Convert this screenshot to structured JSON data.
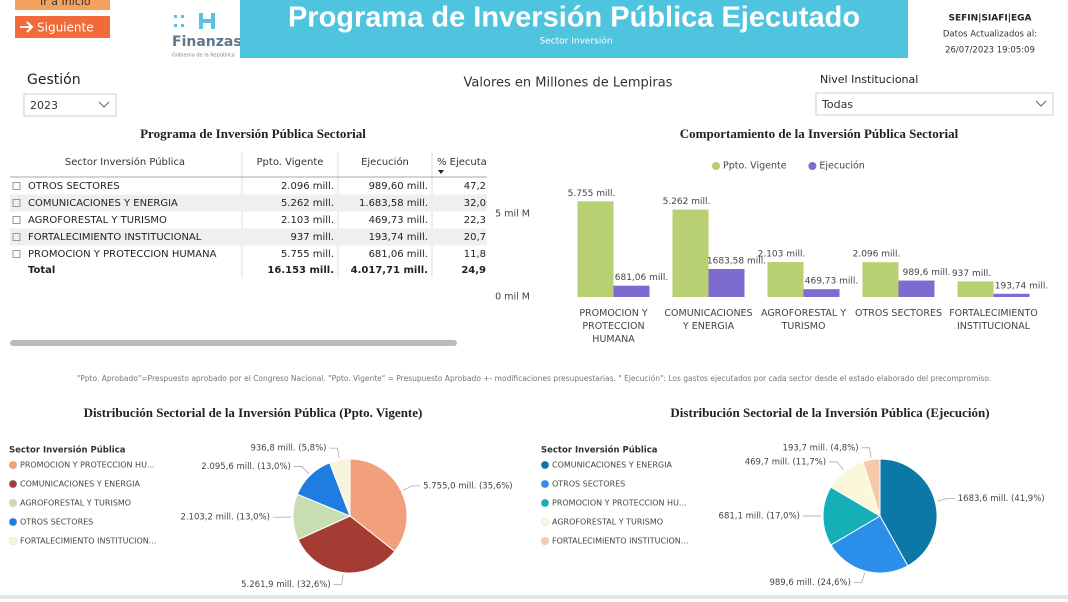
{
  "header": {
    "buttons": [
      "Ir a Inicio",
      "Siguiente"
    ],
    "logo_text": "Finanzas",
    "logo_subtext": "Gobierno de la República",
    "title": "Programa de Inversión Pública Ejecutado",
    "subtitle": "Sector Inversión",
    "source": "SEFIN|SIAFI|EGA",
    "updated_label": "Datos Actualizados al:",
    "updated_at": "26/07/2023 19:05:09"
  },
  "filters": {
    "year_label": "Gestión",
    "year_value": "2023",
    "units_note": "Valores en Millones de Lempiras",
    "level_label": "Nivel Institucional",
    "level_value": "Todas"
  },
  "table": {
    "title": "Programa de Inversión Pública Sectorial",
    "columns": [
      "Sector Inversión Pública",
      "Ppto. Vigente",
      "Ejecución",
      "% Ejecuta"
    ],
    "rows": [
      [
        "OTROS SECTORES",
        "2.096 mill.",
        "989,60 mill.",
        "47,2"
      ],
      [
        "COMUNICACIONES Y ENERGIA",
        "5.262 mill.",
        "1.683,58 mill.",
        "32,0"
      ],
      [
        "AGROFORESTAL Y TURISMO",
        "2.103 mill.",
        "469,73 mill.",
        "22,3"
      ],
      [
        "FORTALECIMIENTO INSTITUCIONAL",
        "937 mill.",
        "193,74 mill.",
        "20,7"
      ],
      [
        "PROMOCION Y PROTECCION HUMANA",
        "5.755 mill.",
        "681,06 mill.",
        "11,8"
      ]
    ],
    "total": [
      "Total",
      "16.153 mill.",
      "4.017,71 mill.",
      "24,9"
    ]
  },
  "footnote": "\"Ppto. Aprobado\"=Prespuesto aprobado por el Congreso Nacional. \"Ppto. Vigente\" = Presupuesto Aprobado +- modificaciones presupuestarias. \" Ejecución\": Los gastos ejecutados por cada sector desde el estado elaborado del precompromiso.",
  "chart_data": [
    {
      "type": "bar",
      "title": "Comportamiento de la Inversión Pública Sectorial",
      "categories": [
        "PROMOCION Y PROTECCION HUMANA",
        "COMUNICACIONES Y ENERGIA",
        "AGROFORESTAL Y TURISMO",
        "OTROS SECTORES",
        "FORTALECIMIENTO INSTITUCIONAL"
      ],
      "series": [
        {
          "name": "Ppto. Vigente",
          "color": "#b8cf72",
          "values": [
            5755,
            5262,
            2103,
            2096,
            937
          ],
          "value_labels": [
            "5.755 mill.",
            "5.262 mill.",
            "2.103 mill.",
            "2.096 mill.",
            "937 mill."
          ]
        },
        {
          "name": "Ejecución",
          "color": "#7c6bd0",
          "values": [
            681.06,
            1683.58,
            469.73,
            989.6,
            193.74
          ],
          "value_labels": [
            "681,06 mill.",
            "1683,58 mill.",
            "469,73 mill.",
            "989,6 mill.",
            "193,74 mill."
          ]
        }
      ],
      "ylim": [
        0,
        6800
      ],
      "yticks": [
        {
          "value": 0,
          "label": "0 mil M"
        },
        {
          "value": 5000,
          "label": "5 mil M"
        }
      ],
      "grid": false
    },
    {
      "type": "pie",
      "title": "Distribución Sectorial de la Inversión Pública (Ppto. Vigente)",
      "legend_title": "Sector Inversión Pública",
      "categories": [
        "PROMOCION Y PROTECCION HU...",
        "COMUNICACIONES Y ENERGIA",
        "AGROFORESTAL Y TURISMO",
        "OTROS SECTORES",
        "FORTALECIMIENTO INSTITUCION..."
      ],
      "values": [
        5755.0,
        5261.9,
        2103.2,
        2095.6,
        936.8
      ],
      "value_labels": [
        "5.755,0 mill. (35,6%)",
        "5.261,9 mill. (32,6%)",
        "2.103,2 mill. (13,0%)",
        "2.095,6 mill. (13,0%)",
        "936,8 mill. (5,8%)"
      ],
      "colors": [
        "#f2a07c",
        "#a53c33",
        "#c9ddb3",
        "#1f7de2",
        "#f8f4da"
      ]
    },
    {
      "type": "pie",
      "title": "Distribución Sectorial de la Inversión Pública (Ejecución)",
      "legend_title": "Sector Inversión Pública",
      "categories": [
        "COMUNICACIONES Y ENERGIA",
        "OTROS SECTORES",
        "PROMOCION Y PROTECCION HU...",
        "AGROFORESTAL Y TURISMO",
        "FORTALECIMIENTO INSTITUCION..."
      ],
      "values": [
        1683.6,
        989.6,
        681.1,
        469.7,
        193.7
      ],
      "value_labels": [
        "1683,6 mill. (41,9%)",
        "989,6 mill. (24,6%)",
        "681,1 mill. (17,0%)",
        "469,7 mill. (11,7%)",
        "193,7 mill. (4,8%)"
      ],
      "colors": [
        "#0b78a6",
        "#2b8fea",
        "#15afb8",
        "#fbf7d9",
        "#f6c9aa"
      ]
    }
  ]
}
